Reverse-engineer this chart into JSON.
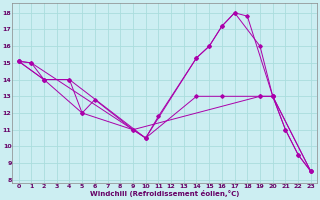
{
  "xlabel": "Windchill (Refroidissement éolien,°C)",
  "background_color": "#cceef2",
  "grid_color": "#aadddd",
  "line_color": "#aa00aa",
  "xlim": [
    -0.5,
    23.5
  ],
  "ylim": [
    7.8,
    18.6
  ],
  "yticks": [
    8,
    9,
    10,
    11,
    12,
    13,
    14,
    15,
    16,
    17,
    18
  ],
  "xticks": [
    0,
    1,
    2,
    3,
    4,
    5,
    6,
    7,
    8,
    9,
    10,
    11,
    12,
    13,
    14,
    15,
    16,
    17,
    18,
    19,
    20,
    21,
    22,
    23
  ],
  "lines": [
    {
      "x": [
        0,
        1,
        2,
        5,
        6,
        9,
        10,
        11,
        14,
        15,
        16,
        17,
        18,
        20,
        21,
        22,
        23
      ],
      "y": [
        15.1,
        15.0,
        14.0,
        12.0,
        12.8,
        11.0,
        10.5,
        11.8,
        15.3,
        16.0,
        17.2,
        18.0,
        17.8,
        13.0,
        11.0,
        9.5,
        8.5
      ]
    },
    {
      "x": [
        0,
        2,
        4,
        5,
        9,
        19,
        20,
        21,
        22,
        23
      ],
      "y": [
        15.1,
        14.0,
        14.0,
        12.0,
        11.0,
        13.0,
        13.0,
        11.0,
        9.5,
        8.5
      ]
    },
    {
      "x": [
        0,
        2,
        4,
        10,
        14,
        16,
        19,
        20,
        23
      ],
      "y": [
        15.1,
        14.0,
        14.0,
        10.5,
        13.0,
        13.0,
        13.0,
        13.0,
        8.5
      ]
    },
    {
      "x": [
        0,
        1,
        10,
        14,
        15,
        16,
        17,
        19,
        20,
        23
      ],
      "y": [
        15.1,
        15.0,
        10.5,
        15.3,
        16.0,
        17.2,
        18.0,
        16.0,
        13.0,
        8.5
      ]
    }
  ]
}
